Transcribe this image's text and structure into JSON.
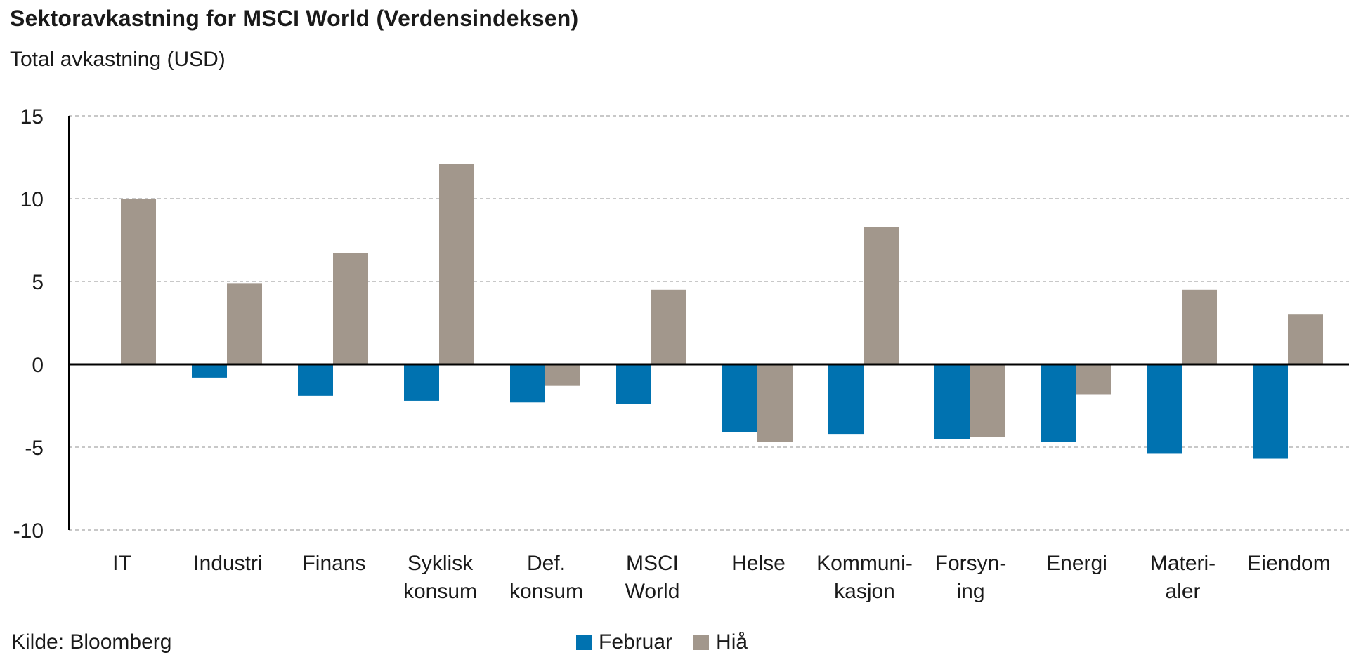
{
  "title": "Sektoravkastning for MSCI World (Verdensindeksen)",
  "subtitle": "Total avkastning (USD)",
  "source": "Kilde: Bloomberg",
  "colors": {
    "februar": "#0072b0",
    "hia": "#a2978c",
    "grid": "#b5b5b5",
    "axis": "#000000"
  },
  "chart_data": {
    "type": "bar",
    "categories": [
      [
        "IT"
      ],
      [
        "Industri"
      ],
      [
        "Finans"
      ],
      [
        "Syklisk",
        "konsum"
      ],
      [
        "Def.",
        "konsum"
      ],
      [
        "MSCI",
        "World"
      ],
      [
        "Helse"
      ],
      [
        "Kommuni-",
        "kasjon"
      ],
      [
        "Forsyn-",
        "ing"
      ],
      [
        "Energi"
      ],
      [
        "Materi-",
        "aler"
      ],
      [
        "Eiendom"
      ]
    ],
    "series": [
      {
        "name": "Februar",
        "values": [
          0,
          -0.8,
          -1.9,
          -2.2,
          -2.3,
          -2.4,
          -4.1,
          -4.2,
          -4.5,
          -4.7,
          -5.4,
          -5.7
        ]
      },
      {
        "name": "Hiå",
        "values": [
          10.0,
          4.9,
          6.7,
          12.1,
          -1.3,
          4.5,
          -4.7,
          8.3,
          -4.4,
          -1.8,
          4.5,
          3.0
        ]
      }
    ],
    "yticks": [
      "15",
      "10",
      "5",
      "0",
      "-5",
      "-10"
    ],
    "ylim": [
      -10,
      15
    ],
    "grid": true,
    "legend_position": "bottom"
  }
}
